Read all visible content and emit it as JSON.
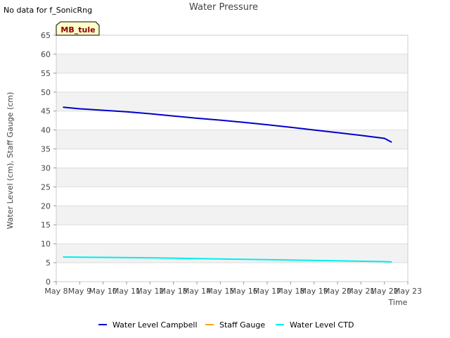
{
  "chart_data": {
    "type": "line",
    "title": "Water Pressure",
    "note": "No data for f_SonicRng",
    "site_badge": "MB_tule",
    "xlabel": "Time",
    "ylabel": "Water Level (cm), Staff Gauge (cm)",
    "ylim": [
      0,
      65
    ],
    "yticks": [
      0,
      5,
      10,
      15,
      20,
      25,
      30,
      35,
      40,
      45,
      50,
      55,
      60,
      65
    ],
    "xlim": [
      0,
      15
    ],
    "xticks": [
      0,
      1,
      2,
      3,
      4,
      5,
      6,
      7,
      8,
      9,
      10,
      11,
      12,
      13,
      14,
      15
    ],
    "xtick_labels": [
      "May 8",
      "May 9",
      "May 10",
      "May 11",
      "May 12",
      "May 13",
      "May 14",
      "May 15",
      "May 16",
      "May 17",
      "May 18",
      "May 19",
      "May 20",
      "May 21",
      "May 22",
      "May 23"
    ],
    "grid": "horizontal bands",
    "colors": {
      "band": "#f2f2f2",
      "grid": "#dddddd",
      "badge_fill": "#ffffcc",
      "badge_text": "#8b0000"
    },
    "series": [
      {
        "name": "Water Level Campbell",
        "color": "#0000cc",
        "x": [
          0.3,
          1,
          2,
          3,
          4,
          5,
          6,
          7,
          8,
          9,
          10,
          11,
          12,
          13,
          14,
          14.3
        ],
        "values": [
          46.0,
          45.6,
          45.2,
          44.8,
          44.3,
          43.7,
          43.1,
          42.6,
          42.0,
          41.4,
          40.7,
          40.0,
          39.3,
          38.6,
          37.8,
          36.8
        ]
      },
      {
        "name": "Staff Gauge",
        "color": "#ffa500",
        "x": [],
        "values": []
      },
      {
        "name": "Water Level CTD",
        "color": "#00eeee",
        "x": [
          0.3,
          2,
          4,
          6,
          8,
          10,
          12,
          14,
          14.3
        ],
        "values": [
          6.5,
          6.4,
          6.3,
          6.1,
          5.9,
          5.7,
          5.5,
          5.3,
          5.2
        ]
      }
    ],
    "legend": "bottom"
  }
}
